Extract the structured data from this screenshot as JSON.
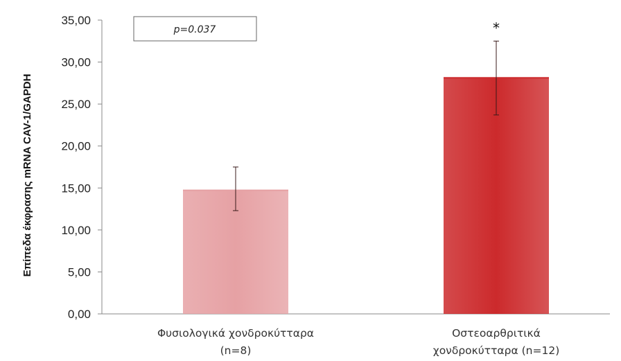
{
  "chart_data": {
    "type": "bar",
    "categories": [
      [
        "Φυσιολογικά χονδροκύτταρα",
        "(n=8)"
      ],
      [
        "Οστεοαρθριτικά",
        "χονδροκύτταρα (n=12)"
      ]
    ],
    "values": [
      14.8,
      28.2
    ],
    "error_low": [
      12.3,
      23.7
    ],
    "error_high": [
      17.5,
      32.5
    ],
    "colors": [
      "#e6a1a4",
      "#cc2a2c"
    ],
    "ylabel": "Επίπεδα έκφρασης mRNA CAV-1/GAPDH",
    "ylim": [
      0,
      35
    ],
    "yticks": [
      "0,00",
      "5,00",
      "10,00",
      "15,00",
      "20,00",
      "25,00",
      "30,00",
      "35,00"
    ],
    "annotation": "p=0.037",
    "significance_marker": "*",
    "grid": false
  }
}
